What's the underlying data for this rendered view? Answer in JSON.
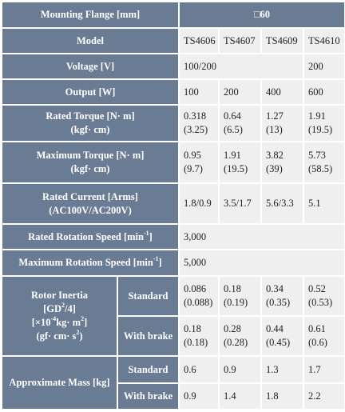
{
  "header": {
    "label": [
      [
        "Mounting Flange [mm]"
      ]
    ],
    "value": "□60"
  },
  "rows": [
    {
      "label": [
        [
          "Model"
        ]
      ],
      "cells": [
        "TS4606",
        "TS4607",
        "TS4609",
        "TS4610"
      ]
    },
    {
      "label": [
        [
          "Voltage [V]"
        ]
      ],
      "cells": [
        "100/200",
        "200"
      ]
    },
    {
      "label": [
        [
          "Output [W]"
        ]
      ],
      "cells": [
        "100",
        "200",
        "400",
        "600"
      ]
    },
    {
      "label": [
        [
          "Rated Torque [N· m]"
        ],
        [
          "(kgf· cm)"
        ]
      ],
      "cells": [
        [
          "0.318",
          "(3.25)"
        ],
        [
          "0.64",
          "(6.5)"
        ],
        [
          "1.27",
          "(13)"
        ],
        [
          "1.91",
          "(19.5)"
        ]
      ]
    },
    {
      "label": [
        [
          "Maximum Torque [N· m]"
        ],
        [
          "(kgf· cm)"
        ]
      ],
      "cells": [
        [
          "0.95",
          "(9.7)"
        ],
        [
          "1.91",
          "(19.5)"
        ],
        [
          "3.82",
          "(39)"
        ],
        [
          "5.73",
          "(58.5)"
        ]
      ]
    },
    {
      "label": [
        [
          "Rated Current [Arms]"
        ],
        [
          "(AC100V/AC200V)"
        ]
      ],
      "cells": [
        "1.8/0.9",
        "3.5/1.7",
        "5.6/3.3",
        "5.1"
      ]
    },
    {
      "label": [
        [
          "Rated Rotation Speed [min",
          {
            "sup": "-1"
          },
          "]"
        ]
      ],
      "cells": [
        "3,000"
      ]
    },
    {
      "label": [
        [
          "Maximum Rotation Speed [min",
          {
            "sup": "-1"
          },
          "]"
        ]
      ],
      "cells": [
        "5,000"
      ]
    },
    {
      "label": [
        [
          "Rotor Inertia"
        ],
        [
          "[GD",
          {
            "sup": "2"
          },
          "/4]"
        ],
        [
          "[×10",
          {
            "sup": "-4"
          },
          "kg· m",
          {
            "sup": "2"
          },
          "]"
        ],
        [
          "(gf· cm· s",
          {
            "sup": "2"
          },
          ")"
        ]
      ],
      "sub": [
        {
          "label": "Standard",
          "cells": [
            [
              "0.086",
              "(0.088)"
            ],
            [
              "0.18",
              "(0.19)"
            ],
            [
              "0.34",
              "(0.35)"
            ],
            [
              "0.52",
              "(0.53)"
            ]
          ]
        },
        {
          "label": "With brake",
          "cells": [
            [
              "0.18",
              "(0.18)"
            ],
            [
              "0.28",
              "(0.28)"
            ],
            [
              "0.44",
              "(0.45)"
            ],
            [
              "0.61",
              "(0.6)"
            ]
          ]
        }
      ]
    },
    {
      "label": [
        [
          "Approximate Mass [kg]"
        ]
      ],
      "sub": [
        {
          "label": "Standard",
          "cells": [
            "0.6",
            "0.9",
            "1.3",
            "1.7"
          ]
        },
        {
          "label": "With brake",
          "cells": [
            "0.9",
            "1.4",
            "1.8",
            "2.2"
          ]
        }
      ]
    }
  ]
}
